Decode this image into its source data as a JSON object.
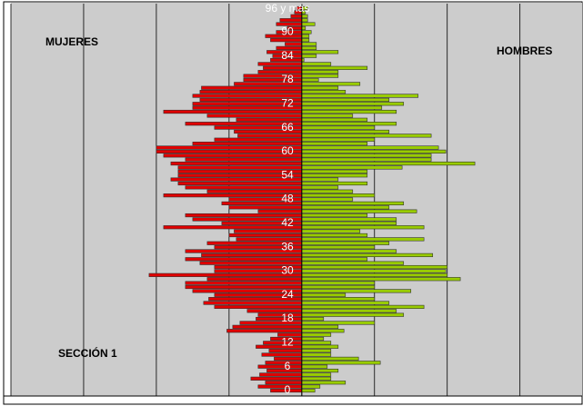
{
  "chart_data": {
    "type": "pyramid",
    "labels": {
      "left": "MUJERES",
      "right": "HOMBRES",
      "section": "SECCIÓN 1"
    },
    "categories": [
      "0",
      null,
      null,
      null,
      null,
      null,
      "6",
      null,
      null,
      null,
      null,
      null,
      "12",
      null,
      null,
      null,
      null,
      null,
      "18",
      null,
      null,
      null,
      null,
      null,
      "24",
      null,
      null,
      null,
      null,
      null,
      "30",
      null,
      null,
      null,
      null,
      null,
      "36",
      null,
      null,
      null,
      null,
      null,
      "42",
      null,
      null,
      null,
      null,
      null,
      "48",
      null,
      null,
      null,
      null,
      null,
      "54",
      null,
      null,
      null,
      null,
      null,
      "60",
      null,
      null,
      null,
      null,
      null,
      "66",
      null,
      null,
      null,
      null,
      null,
      "72",
      null,
      null,
      null,
      null,
      null,
      "78",
      null,
      null,
      null,
      null,
      null,
      "84",
      null,
      null,
      null,
      null,
      null,
      "90",
      null,
      null,
      null,
      null,
      null,
      "96 y más"
    ],
    "series": [
      {
        "name": "MUJERES",
        "side": "left",
        "color": "#e00000",
        "values": [
          4.3,
          6,
          5,
          7,
          5.8,
          4.8,
          6,
          5,
          3.8,
          5.5,
          4.5,
          6.3,
          5.3,
          4.3,
          3.3,
          10.3,
          9.5,
          8.5,
          6.3,
          6,
          7.5,
          12,
          13.5,
          12.8,
          12,
          15,
          16,
          16,
          13,
          21,
          12,
          12,
          14,
          16,
          13.8,
          16,
          12,
          13,
          9,
          10,
          9.3,
          19,
          11,
          15,
          16,
          6,
          10,
          11,
          10,
          19,
          13,
          16,
          17,
          18,
          17,
          17,
          17,
          18,
          16,
          19,
          20,
          20,
          15,
          12,
          8.8,
          9.3,
          12,
          16,
          9,
          13,
          19,
          15,
          15,
          14,
          15,
          14,
          13.8,
          9.3,
          8,
          8,
          6,
          5.3,
          6,
          4.3,
          4,
          4.8,
          3.5,
          2.3,
          4.3,
          5,
          3.5,
          2,
          3.5,
          3,
          1.5,
          1,
          0.8
        ]
      },
      {
        "name": "HOMBRES",
        "side": "right",
        "color": "#99cc00",
        "values": [
          1.8,
          2.5,
          6,
          4,
          4,
          5,
          3.5,
          10.8,
          7.8,
          4,
          4,
          5,
          4,
          3,
          4,
          5.8,
          5,
          10,
          3,
          14,
          13,
          16.8,
          12,
          10,
          6,
          15,
          10,
          10,
          21.8,
          20,
          19.8,
          20,
          14,
          9,
          18,
          13,
          10,
          12,
          16.8,
          9,
          8,
          16.8,
          13,
          13,
          9,
          15.8,
          12,
          14,
          7,
          10,
          7,
          5,
          9,
          5,
          9,
          9,
          13.8,
          23.8,
          17.8,
          17.8,
          19.8,
          18.8,
          9,
          10,
          17.8,
          12,
          10,
          13,
          9,
          7,
          13,
          11,
          14,
          12,
          16,
          6,
          5,
          8,
          2.3,
          5,
          5,
          9,
          4,
          0.3,
          2,
          5,
          2,
          2,
          1,
          1,
          1.3,
          0.5,
          1.8,
          0.8,
          0.8,
          0.5,
          0.8
        ]
      }
    ],
    "xlim": [
      -40,
      38.625
    ],
    "xticks": [
      -40,
      -30,
      -20,
      -10,
      0,
      10,
      20,
      30
    ],
    "grid": true
  }
}
